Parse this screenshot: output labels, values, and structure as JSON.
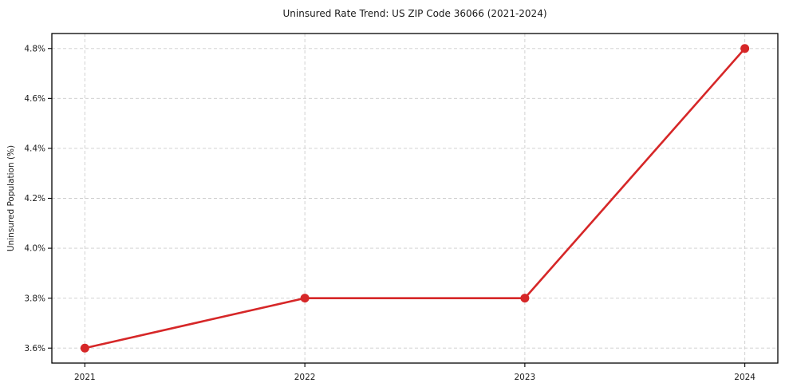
{
  "chart_data": {
    "type": "line",
    "title": "Uninsured Rate Trend: US ZIP Code 36066 (2021-2024)",
    "xlabel": "",
    "ylabel": "Uninsured Population (%)",
    "x": [
      2021,
      2022,
      2023,
      2024
    ],
    "values": [
      3.6,
      3.8,
      3.8,
      4.8
    ],
    "x_tick_labels": [
      "2021",
      "2022",
      "2023",
      "2024"
    ],
    "y_ticks": [
      3.6,
      3.8,
      4.0,
      4.2,
      4.4,
      4.6,
      4.8
    ],
    "y_tick_labels": [
      "3.6%",
      "3.8%",
      "4.0%",
      "4.2%",
      "4.4%",
      "4.6%",
      "4.8%"
    ],
    "xlim": [
      2020.85,
      2024.15
    ],
    "ylim": [
      3.54,
      4.86
    ],
    "grid": true,
    "grid_style": "dashed",
    "legend": "none",
    "marker": "circle",
    "colors": {
      "line": "#d62728",
      "marker": "#d62728",
      "grid": "#cccccc",
      "text": "#1a1a1a",
      "axis_border": "#000000",
      "background": "#ffffff"
    }
  }
}
